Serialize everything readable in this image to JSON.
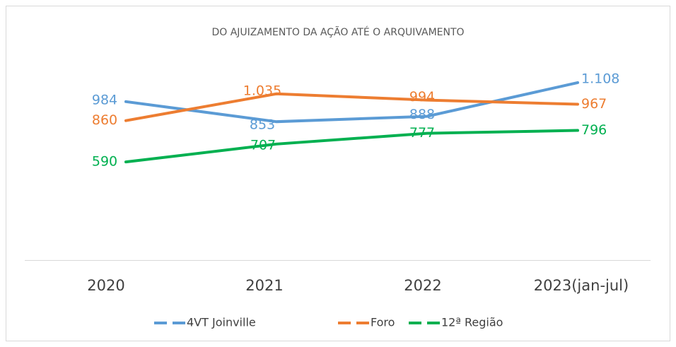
{
  "chart_data": {
    "type": "line",
    "title": "DO AJUIZAMENTO DA AÇÃO ATÉ O ARQUIVAMENTO",
    "categories": [
      "2020",
      "2021",
      "2022",
      "2023(jan-jul)"
    ],
    "ylim": [
      0,
      1200
    ],
    "series": [
      {
        "name": "4VT Joinville",
        "color": "#5b9bd5",
        "values": [
          984,
          853,
          888,
          1108
        ],
        "value_labels": [
          "984",
          "853",
          "888",
          "1.108"
        ]
      },
      {
        "name": "Foro",
        "color": "#ed7d31",
        "values": [
          860,
          1035,
          994,
          967
        ],
        "value_labels": [
          "860",
          "1.035",
          "994",
          "967"
        ]
      },
      {
        "name": "12ª Região",
        "color": "#00b050",
        "values": [
          590,
          707,
          777,
          796
        ],
        "value_labels": [
          "590",
          "707",
          "777",
          "796"
        ]
      }
    ]
  }
}
